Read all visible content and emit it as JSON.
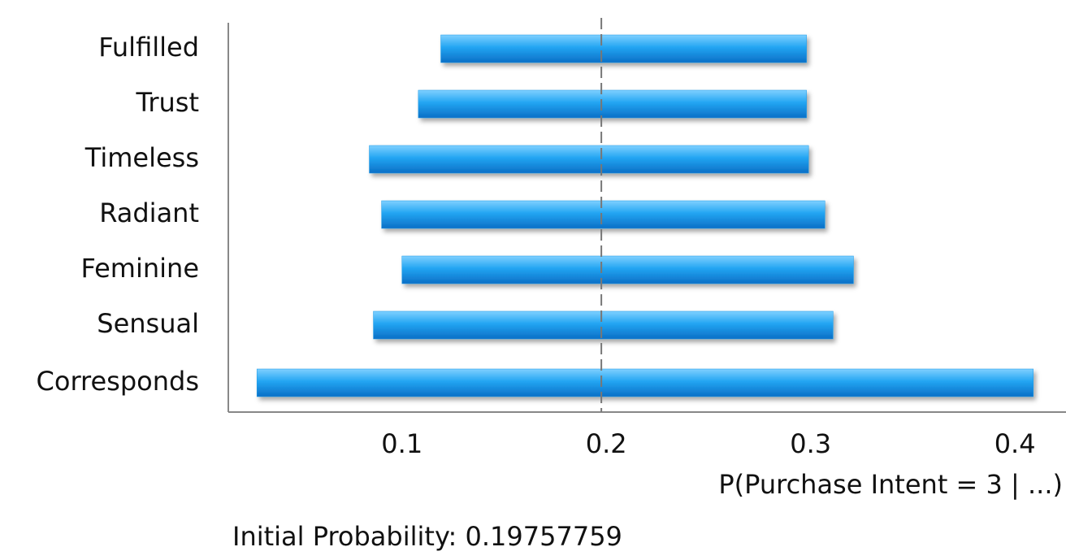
{
  "chart_data": {
    "type": "range-bar",
    "categories": [
      "Fulfilled",
      "Trust",
      "Timeless",
      "Radiant",
      "Feminine",
      "Sensual",
      "Corresponds"
    ],
    "low": [
      0.119,
      0.108,
      0.084,
      0.09,
      0.1,
      0.086,
      0.029
    ],
    "high": [
      0.298,
      0.298,
      0.299,
      0.307,
      0.321,
      0.311,
      0.409
    ],
    "color": "#1a9ae8",
    "xlim": [
      0.015,
      0.425
    ],
    "xticks": [
      0.1,
      0.2,
      0.3,
      0.4
    ],
    "xlabel": "P(Purchase Intent = 3 | ...)",
    "reference_line": {
      "value": 0.19757759,
      "label": "Initial Probability: 0.19757759"
    },
    "grid": false
  }
}
